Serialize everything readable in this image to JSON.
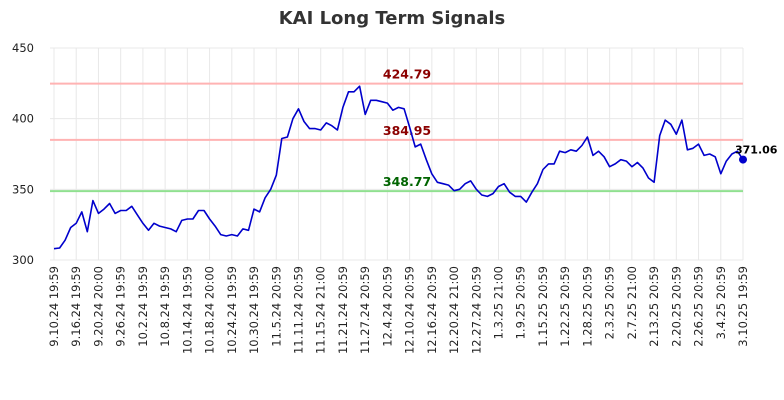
{
  "chart_data": {
    "type": "line",
    "title": "KAI Long Term Signals",
    "xlabel": "",
    "ylabel": "",
    "ylim": [
      300,
      450
    ],
    "yticks": [
      300,
      350,
      400,
      450
    ],
    "grid": true,
    "x_tick_labels": [
      "9.10.24 19:59",
      "9.16.24 19:59",
      "9.20.24 20:00",
      "9.26.24 19:59",
      "10.2.24 19:59",
      "10.8.24 19:59",
      "10.14.24 19:59",
      "10.18.24 20:00",
      "10.24.24 19:59",
      "10.30.24 19:59",
      "11.5.24 20:59",
      "11.11.24 20:59",
      "11.15.24 21:00",
      "11.21.24 20:59",
      "11.27.24 20:59",
      "12.4.24 20:59",
      "12.10.24 20:59",
      "12.16.24 20:59",
      "12.20.24 21:00",
      "12.27.24 20:59",
      "1.3.25 21:00",
      "1.9.25 20:59",
      "1.15.25 20:59",
      "1.22.25 20:59",
      "1.28.25 20:59",
      "2.3.25 20:59",
      "2.7.25 21:00",
      "2.13.25 20:59",
      "2.20.25 20:59",
      "2.26.25 20:59",
      "3.4.25 20:59",
      "3.10.25 19:59"
    ],
    "reference_lines": [
      {
        "value": 424.79,
        "label": "424.79",
        "color": "#ffb3b3",
        "label_color": "#8b0000"
      },
      {
        "value": 384.95,
        "label": "384.95",
        "color": "#ffb3b3",
        "label_color": "#8b0000"
      },
      {
        "value": 348.77,
        "label": "348.77",
        "color": "#90e090",
        "label_color": "#006400"
      }
    ],
    "line_color": "#0000cc",
    "last_value_label": "371.06",
    "series": [
      {
        "values": [
          308,
          308.5,
          314,
          323,
          326,
          334,
          320,
          342,
          333,
          336,
          340,
          333,
          335,
          335,
          338,
          332,
          326,
          321,
          326,
          324,
          323,
          322,
          320,
          328,
          329,
          329,
          335,
          335,
          329,
          324,
          318,
          317,
          318,
          317,
          322,
          321,
          336,
          334,
          344,
          350,
          360,
          386,
          387,
          400,
          407,
          398,
          393,
          393,
          392,
          397,
          395,
          392,
          408,
          419,
          419,
          423,
          403,
          413,
          413,
          412,
          411,
          406,
          408,
          407,
          394,
          380,
          382,
          371,
          361,
          355,
          354,
          353,
          349,
          350,
          354,
          356,
          350,
          346,
          345,
          347,
          352,
          354,
          348,
          345,
          345,
          341,
          348,
          354,
          364,
          368,
          368,
          377,
          376,
          378,
          377,
          381,
          387,
          374,
          377,
          373,
          366,
          368,
          371,
          370,
          366,
          369,
          365,
          358,
          355,
          388,
          399,
          396,
          389,
          399,
          378,
          379,
          382,
          374,
          375,
          373,
          361,
          370,
          375,
          377,
          371.06
        ]
      }
    ]
  }
}
